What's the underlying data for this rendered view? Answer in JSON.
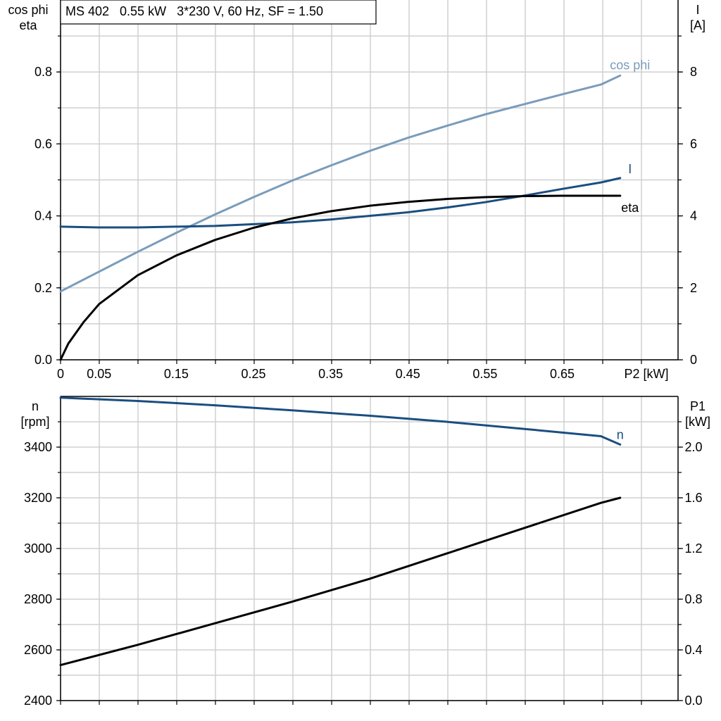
{
  "header": {
    "title": "MS 402   0.55 kW   3*230 V, 60 Hz, SF = 1.50"
  },
  "chart_data": [
    {
      "type": "line",
      "x_label": "P2 [kW]",
      "x_range": [
        0,
        0.8
      ],
      "x_ticks": [
        0,
        0.05,
        0.15,
        0.25,
        0.35,
        0.45,
        0.55,
        0.65
      ],
      "x_tick_labels": [
        "0",
        "0.05",
        "0.15",
        "0.25",
        "0.35",
        "0.45",
        "0.55",
        "0.65"
      ],
      "y_left_label": [
        "cos phi",
        "eta"
      ],
      "y_left_range": [
        0,
        1.0
      ],
      "y_left_ticks": [
        0.0,
        0.2,
        0.4,
        0.6,
        0.8
      ],
      "y_left_tick_labels": [
        "0.0",
        "0.2",
        "0.4",
        "0.6",
        "0.8"
      ],
      "y_right_label": [
        "I",
        "[A]"
      ],
      "y_right_range": [
        0,
        10
      ],
      "y_right_ticks": [
        0,
        2,
        4,
        6,
        8
      ],
      "y_right_tick_labels": [
        "0",
        "2",
        "4",
        "6",
        "8"
      ],
      "grid": true,
      "series": [
        {
          "name": "cos phi",
          "axis": "left",
          "color": "#7a9cbb",
          "x": [
            0,
            0.05,
            0.1,
            0.15,
            0.2,
            0.25,
            0.3,
            0.35,
            0.4,
            0.45,
            0.5,
            0.55,
            0.6,
            0.65,
            0.7,
            0.725
          ],
          "y": [
            0.19,
            0.245,
            0.3,
            0.353,
            0.404,
            0.452,
            0.498,
            0.54,
            0.58,
            0.617,
            0.65,
            0.682,
            0.71,
            0.738,
            0.765,
            0.79
          ]
        },
        {
          "name": "I",
          "axis": "right",
          "color": "#1a4e80",
          "x": [
            0,
            0.05,
            0.1,
            0.15,
            0.2,
            0.25,
            0.3,
            0.35,
            0.4,
            0.45,
            0.5,
            0.55,
            0.6,
            0.65,
            0.7,
            0.725
          ],
          "y": [
            3.7,
            3.68,
            3.68,
            3.7,
            3.72,
            3.77,
            3.82,
            3.9,
            4.0,
            4.1,
            4.23,
            4.38,
            4.56,
            4.75,
            4.93,
            5.05
          ]
        },
        {
          "name": "eta",
          "axis": "left",
          "color": "#000000",
          "x": [
            0,
            0.01,
            0.03,
            0.05,
            0.1,
            0.15,
            0.2,
            0.25,
            0.3,
            0.35,
            0.4,
            0.45,
            0.5,
            0.55,
            0.6,
            0.65,
            0.7,
            0.725
          ],
          "y": [
            0.0,
            0.045,
            0.105,
            0.155,
            0.235,
            0.29,
            0.333,
            0.367,
            0.393,
            0.413,
            0.428,
            0.439,
            0.447,
            0.452,
            0.455,
            0.456,
            0.456,
            0.456
          ]
        }
      ]
    },
    {
      "type": "line",
      "x_range": [
        0,
        0.8
      ],
      "y_left_label": [
        "n",
        "[rpm]"
      ],
      "y_left_range": [
        2400,
        3600
      ],
      "y_left_ticks": [
        2400,
        2600,
        2800,
        3000,
        3200,
        3400
      ],
      "y_left_tick_labels": [
        "2400",
        "2600",
        "2800",
        "3000",
        "3200",
        "3400"
      ],
      "y_right_label": [
        "P1",
        "[kW]"
      ],
      "y_right_range": [
        0,
        2.4
      ],
      "y_right_ticks": [
        0,
        0.4,
        0.8,
        1.2,
        1.6,
        2.0
      ],
      "y_right_tick_labels": [
        "0.0",
        "0.4",
        "0.8",
        "1.2",
        "1.6",
        "2.0"
      ],
      "grid": true,
      "series": [
        {
          "name": "n",
          "axis": "left",
          "color": "#1a4e80",
          "x": [
            0,
            0.1,
            0.2,
            0.3,
            0.4,
            0.5,
            0.6,
            0.7,
            0.725
          ],
          "y": [
            3595,
            3582,
            3565,
            3545,
            3524,
            3500,
            3472,
            3443,
            3410
          ]
        },
        {
          "name": "",
          "axis": "right",
          "color": "#000000",
          "x": [
            0,
            0.1,
            0.2,
            0.3,
            0.4,
            0.5,
            0.6,
            0.7,
            0.725
          ],
          "y": [
            0.28,
            0.44,
            0.61,
            0.78,
            0.96,
            1.16,
            1.36,
            1.56,
            1.6
          ]
        }
      ]
    }
  ]
}
